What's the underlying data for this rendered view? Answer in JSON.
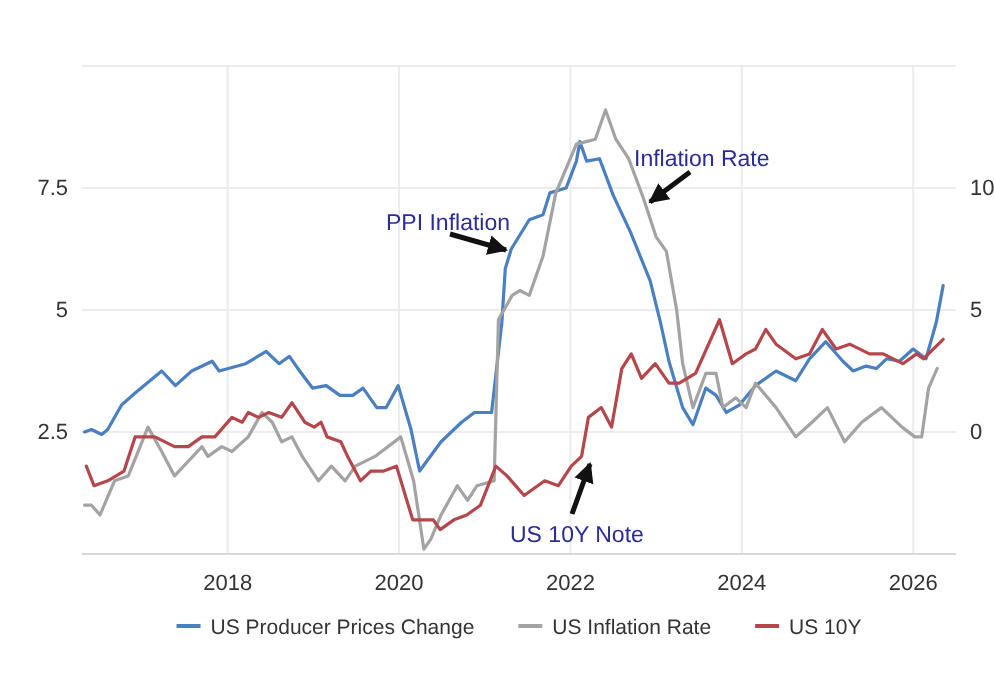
{
  "chart_data": {
    "type": "line",
    "xlim": [
      2016.3,
      2026.5
    ],
    "xticks": [
      2018,
      2020,
      2022,
      2024,
      2026
    ],
    "ylim": [
      0,
      10
    ],
    "yticks": [
      2.5,
      5,
      7.5
    ],
    "y2lim": [
      -5,
      15
    ],
    "y2ticks": [
      0,
      5,
      10
    ],
    "grid": true,
    "legend": "bottom",
    "line_style": "solid",
    "marker": "none",
    "series": [
      {
        "name": "US Producer Prices Change",
        "color": "#4a7fc1",
        "axis": "y2",
        "x": [
          2016.33,
          2016.41,
          2016.53,
          2016.6,
          2016.76,
          2016.92,
          2017.23,
          2017.39,
          2017.58,
          2017.82,
          2017.9,
          2018.21,
          2018.45,
          2018.6,
          2018.72,
          2018.84,
          2018.99,
          2019.15,
          2019.31,
          2019.46,
          2019.58,
          2019.74,
          2019.85,
          2019.99,
          2020.14,
          2020.24,
          2020.49,
          2020.73,
          2020.88,
          2021.08,
          2021.2,
          2021.24,
          2021.31,
          2021.52,
          2021.68,
          2021.76,
          2021.95,
          2022.07,
          2022.11,
          2022.19,
          2022.34,
          2022.5,
          2022.7,
          2022.93,
          2023.05,
          2023.15,
          2023.31,
          2023.43,
          2023.58,
          2023.7,
          2023.82,
          2023.97,
          2024.16,
          2024.4,
          2024.63,
          2024.79,
          2024.98,
          2025.18,
          2025.3,
          2025.45,
          2025.57,
          2025.69,
          2025.84,
          2026.0,
          2026.15,
          2026.27,
          2026.35
        ],
        "values": [
          0,
          0.1,
          -0.1,
          0.1,
          1.1,
          1.6,
          2.5,
          1.9,
          2.5,
          2.9,
          2.5,
          2.8,
          3.3,
          2.8,
          3.1,
          2.5,
          1.8,
          1.9,
          1.5,
          1.5,
          1.8,
          1.0,
          1.0,
          1.9,
          0.1,
          -1.6,
          -0.4,
          0.4,
          0.8,
          0.8,
          4.5,
          6.7,
          7.5,
          8.7,
          8.9,
          9.8,
          10.0,
          11.1,
          11.9,
          11.1,
          11.2,
          9.7,
          8.2,
          6.2,
          4.5,
          2.9,
          1.0,
          0.3,
          1.8,
          1.5,
          0.8,
          1.1,
          1.9,
          2.5,
          2.1,
          3.0,
          3.7,
          2.9,
          2.5,
          2.7,
          2.6,
          3.0,
          2.9,
          3.4,
          3.0,
          4.5,
          6.0
        ]
      },
      {
        "name": "US Inflation Rate",
        "color": "#a3a3a3",
        "x": [
          2016.33,
          2016.41,
          2016.51,
          2016.68,
          2016.84,
          2017.07,
          2017.23,
          2017.38,
          2017.54,
          2017.7,
          2017.77,
          2017.93,
          2018.05,
          2018.24,
          2018.4,
          2018.52,
          2018.63,
          2018.75,
          2018.87,
          2019.06,
          2019.21,
          2019.37,
          2019.49,
          2019.72,
          2020.02,
          2020.17,
          2020.29,
          2020.37,
          2020.49,
          2020.68,
          2020.8,
          2020.91,
          2021.11,
          2021.16,
          2021.32,
          2021.41,
          2021.52,
          2021.68,
          2021.83,
          2022.07,
          2022.29,
          2022.41,
          2022.53,
          2022.68,
          2022.85,
          2023.0,
          2023.12,
          2023.24,
          2023.31,
          2023.43,
          2023.58,
          2023.7,
          2023.78,
          2023.93,
          2024.05,
          2024.16,
          2024.4,
          2024.63,
          2024.82,
          2025.0,
          2025.2,
          2025.4,
          2025.63,
          2025.87,
          2026.02,
          2026.1,
          2026.18,
          2026.28
        ],
        "values": [
          1.0,
          1.0,
          0.8,
          1.5,
          1.6,
          2.6,
          2.1,
          1.6,
          1.9,
          2.2,
          2.0,
          2.2,
          2.1,
          2.4,
          2.9,
          2.7,
          2.3,
          2.4,
          2.0,
          1.5,
          1.8,
          1.5,
          1.8,
          2.0,
          2.4,
          1.5,
          0.1,
          0.3,
          0.8,
          1.4,
          1.1,
          1.4,
          1.5,
          4.8,
          5.3,
          5.4,
          5.3,
          6.1,
          7.4,
          8.4,
          8.5,
          9.1,
          8.5,
          8.1,
          7.3,
          6.5,
          6.2,
          5.0,
          3.9,
          3.0,
          3.7,
          3.7,
          3.0,
          3.2,
          3.0,
          3.5,
          3.0,
          2.4,
          2.7,
          3.0,
          2.3,
          2.7,
          3.0,
          2.6,
          2.4,
          2.4,
          3.4,
          3.8
        ]
      },
      {
        "name": "US 10Y",
        "color": "#b5474b",
        "x": [
          2016.35,
          2016.44,
          2016.6,
          2016.79,
          2016.92,
          2017.15,
          2017.38,
          2017.54,
          2017.7,
          2017.85,
          2018.05,
          2018.17,
          2018.24,
          2018.36,
          2018.48,
          2018.63,
          2018.75,
          2018.9,
          2019.01,
          2019.09,
          2019.16,
          2019.32,
          2019.4,
          2019.55,
          2019.67,
          2019.82,
          2019.97,
          2020.09,
          2020.16,
          2020.4,
          2020.48,
          2020.64,
          2020.79,
          2020.95,
          2021.13,
          2021.26,
          2021.46,
          2021.7,
          2021.86,
          2022.01,
          2022.13,
          2022.21,
          2022.36,
          2022.48,
          2022.6,
          2022.71,
          2022.83,
          2022.99,
          2023.15,
          2023.27,
          2023.46,
          2023.74,
          2023.89,
          2024.05,
          2024.16,
          2024.28,
          2024.4,
          2024.63,
          2024.79,
          2024.94,
          2025.1,
          2025.26,
          2025.49,
          2025.65,
          2025.88,
          2026.04,
          2026.12,
          2026.35
        ],
        "values": [
          1.8,
          1.4,
          1.5,
          1.7,
          2.4,
          2.4,
          2.2,
          2.2,
          2.4,
          2.4,
          2.8,
          2.7,
          2.9,
          2.8,
          2.9,
          2.8,
          3.1,
          2.7,
          2.6,
          2.7,
          2.4,
          2.3,
          2.0,
          1.5,
          1.7,
          1.7,
          1.8,
          1.1,
          0.7,
          0.7,
          0.5,
          0.7,
          0.8,
          1.0,
          1.8,
          1.6,
          1.2,
          1.5,
          1.4,
          1.8,
          2.0,
          2.8,
          3.0,
          2.6,
          3.8,
          4.1,
          3.6,
          3.9,
          3.5,
          3.5,
          3.7,
          4.8,
          3.9,
          4.1,
          4.2,
          4.6,
          4.3,
          4.0,
          4.1,
          4.6,
          4.2,
          4.3,
          4.1,
          4.1,
          3.9,
          4.1,
          4.0,
          4.4
        ]
      }
    ],
    "annotations": [
      "PPI Inflation",
      "Inflation Rate",
      "US 10Y Note"
    ]
  }
}
